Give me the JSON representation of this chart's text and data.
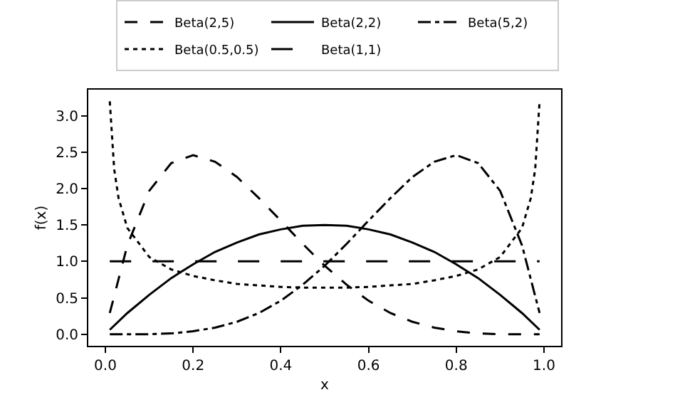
{
  "chart_data": {
    "type": "line",
    "xlabel": "x",
    "ylabel": "f(x)",
    "x": [
      0.01,
      0.05,
      0.1,
      0.15,
      0.2,
      0.25,
      0.3,
      0.35,
      0.4,
      0.45,
      0.5,
      0.55,
      0.6,
      0.65,
      0.7,
      0.75,
      0.8,
      0.85,
      0.9,
      0.95,
      0.99
    ],
    "series": [
      {
        "name": "Beta(2,5)",
        "color": "#000000",
        "line_style": "dashed",
        "values": [
          0.29,
          1.22,
          1.97,
          2.35,
          2.46,
          2.37,
          2.16,
          1.87,
          1.56,
          1.24,
          0.94,
          0.68,
          0.46,
          0.29,
          0.17,
          0.09,
          0.04,
          0.01,
          0.0,
          0.0,
          0.0
        ]
      },
      {
        "name": "Beta(2,2)",
        "color": "#000000",
        "line_style": "solid",
        "values": [
          0.06,
          0.29,
          0.54,
          0.77,
          0.96,
          1.13,
          1.26,
          1.37,
          1.44,
          1.49,
          1.5,
          1.49,
          1.44,
          1.37,
          1.26,
          1.13,
          0.96,
          0.77,
          0.54,
          0.29,
          0.06
        ]
      },
      {
        "name": "Beta(5,2)",
        "color": "#000000",
        "line_style": "dashdot",
        "values": [
          0.0,
          0.0,
          0.0,
          0.01,
          0.04,
          0.09,
          0.17,
          0.29,
          0.46,
          0.68,
          0.94,
          1.24,
          1.56,
          1.87,
          2.16,
          2.37,
          2.46,
          2.35,
          1.97,
          1.22,
          0.29
        ]
      },
      {
        "name": "Beta(0.5,0.5)",
        "color": "#000000",
        "line_style": "dotted",
        "x": [
          0.01,
          0.02,
          0.03,
          0.05,
          0.1,
          0.15,
          0.2,
          0.25,
          0.3,
          0.35,
          0.4,
          0.45,
          0.5,
          0.55,
          0.6,
          0.65,
          0.7,
          0.75,
          0.8,
          0.85,
          0.9,
          0.95,
          0.97,
          0.98,
          0.99
        ],
        "values": [
          3.2,
          2.27,
          1.87,
          1.46,
          1.06,
          0.89,
          0.8,
          0.74,
          0.69,
          0.67,
          0.65,
          0.64,
          0.64,
          0.64,
          0.65,
          0.67,
          0.69,
          0.74,
          0.8,
          0.89,
          1.06,
          1.46,
          1.87,
          2.27,
          3.2
        ]
      },
      {
        "name": "Beta(1,1)",
        "color": "#000000",
        "line_style": "longdash",
        "x": [
          0.01,
          0.99
        ],
        "values": [
          1.0,
          1.0
        ]
      }
    ],
    "xlim": [
      -0.039,
      1.039
    ],
    "xticks": [
      {
        "value": 0,
        "label": "0.0"
      },
      0.2,
      0.4,
      0.6,
      0.8,
      {
        "value": 1,
        "label": "1.0"
      }
    ],
    "ylim": [
      -0.16,
      3.36
    ],
    "yticks": [
      {
        "value": 0,
        "label": "0.0"
      },
      0.5,
      {
        "value": 1,
        "label": "1.0"
      },
      1.5,
      {
        "value": 2,
        "label": "2.0"
      },
      2.5,
      {
        "value": 3,
        "label": "3.0"
      }
    ],
    "legend": "top",
    "marker": "none"
  }
}
